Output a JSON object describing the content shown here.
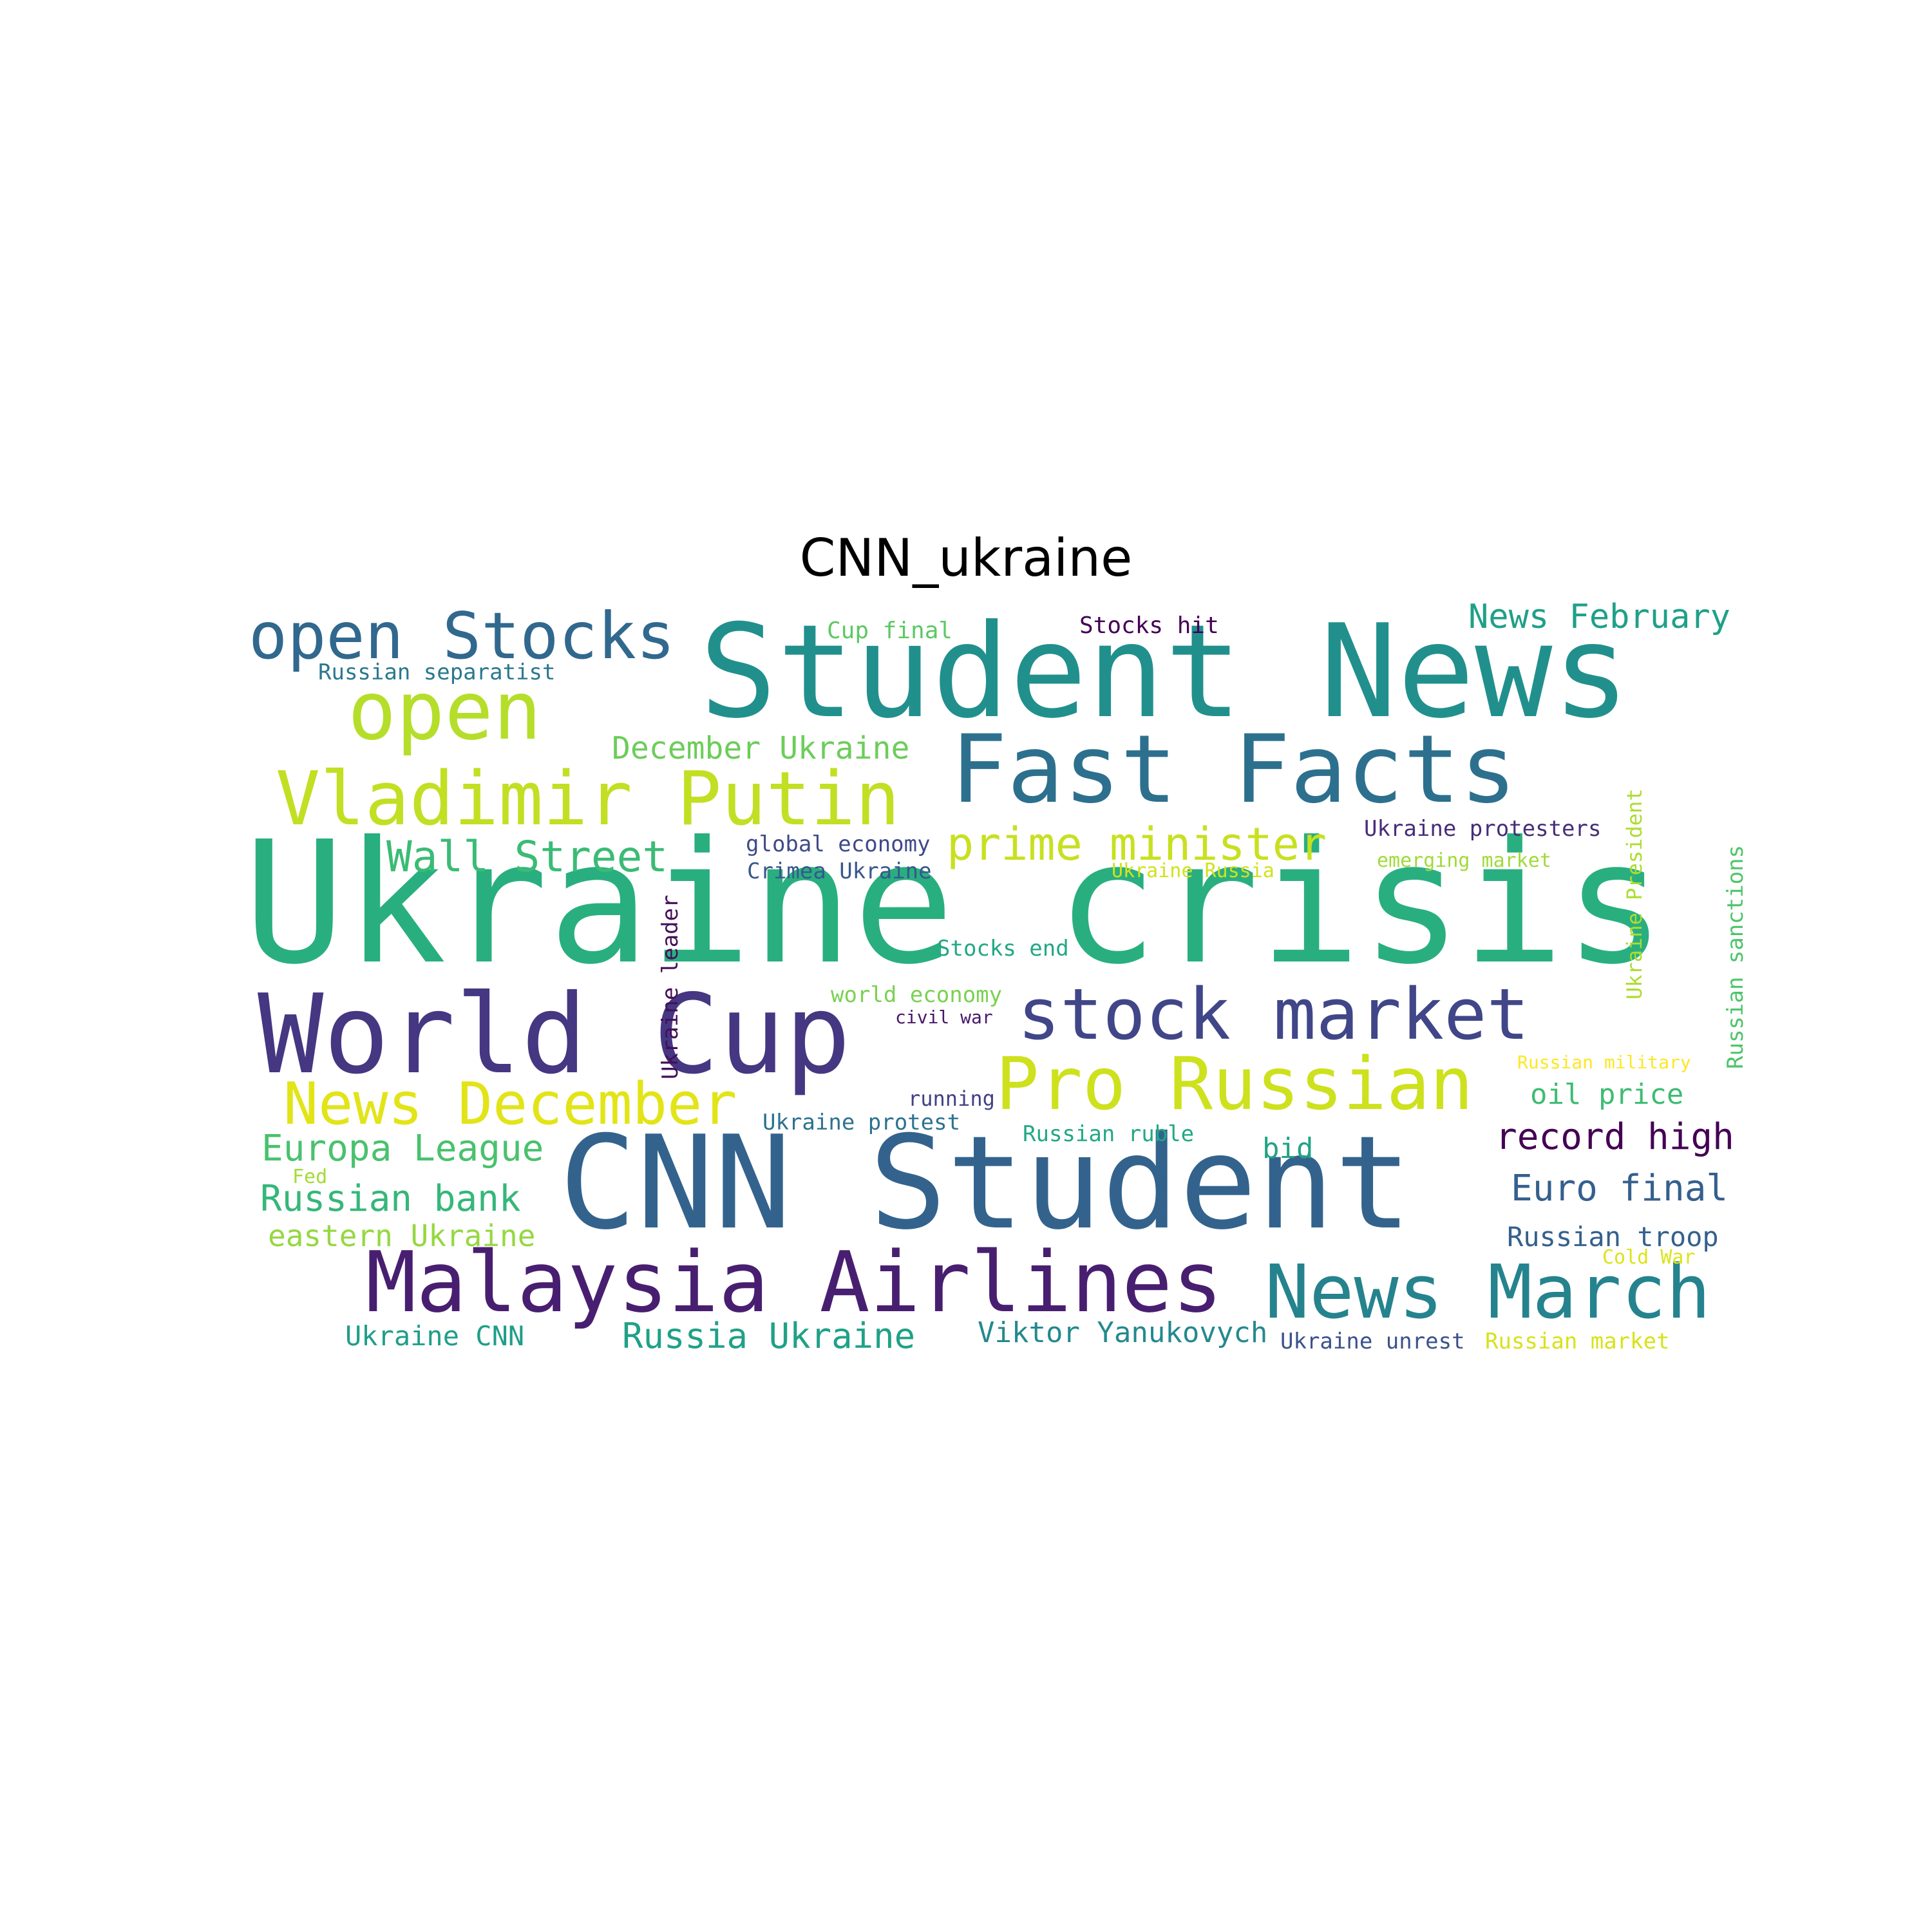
{
  "title": "CNN_ukraine",
  "words": [
    {
      "text": "Ukraine crisis",
      "color": "#29af7f",
      "orientation": "horizontal"
    },
    {
      "text": "Student News",
      "color": "#21908d",
      "orientation": "horizontal"
    },
    {
      "text": "CNN Student",
      "color": "#33638d",
      "orientation": "horizontal"
    },
    {
      "text": "Fast Facts",
      "color": "#2d708e",
      "orientation": "horizontal"
    },
    {
      "text": "World Cup",
      "color": "#453781",
      "orientation": "horizontal"
    },
    {
      "text": "stock market",
      "color": "#404688",
      "orientation": "horizontal"
    },
    {
      "text": "Malaysia Airlines",
      "color": "#481f70",
      "orientation": "horizontal"
    },
    {
      "text": "News March",
      "color": "#25838e",
      "orientation": "horizontal"
    },
    {
      "text": "open Stocks",
      "color": "#31688e",
      "orientation": "horizontal"
    },
    {
      "text": "open",
      "color": "#b5de2b",
      "orientation": "horizontal"
    },
    {
      "text": "Vladimir Putin",
      "color": "#c2df23",
      "orientation": "horizontal"
    },
    {
      "text": "Pro Russian",
      "color": "#cde11d",
      "orientation": "horizontal"
    },
    {
      "text": "News December",
      "color": "#e2e418",
      "orientation": "horizontal"
    },
    {
      "text": "Wall Street",
      "color": "#3bbb75",
      "orientation": "horizontal"
    },
    {
      "text": "prime minister",
      "color": "#c8e020",
      "orientation": "horizontal"
    },
    {
      "text": "News February",
      "color": "#1fa088",
      "orientation": "horizontal"
    },
    {
      "text": "December Ukraine",
      "color": "#6ccd5a",
      "orientation": "horizontal"
    },
    {
      "text": "Cup final",
      "color": "#5cc863",
      "orientation": "horizontal"
    },
    {
      "text": "Stocks hit",
      "color": "#440154",
      "orientation": "horizontal"
    },
    {
      "text": "Russian separatist",
      "color": "#2a788e",
      "orientation": "horizontal"
    },
    {
      "text": "global economy",
      "color": "#3e4a89",
      "orientation": "horizontal"
    },
    {
      "text": "Crimea Ukraine",
      "color": "#38588c",
      "orientation": "horizontal"
    },
    {
      "text": "Ukraine protesters",
      "color": "#472c7a",
      "orientation": "horizontal"
    },
    {
      "text": "emerging market",
      "color": "#a0da39",
      "orientation": "horizontal"
    },
    {
      "text": "Ukraine Russia",
      "color": "#d2e21b",
      "orientation": "horizontal"
    },
    {
      "text": "Stocks end",
      "color": "#22a785",
      "orientation": "horizontal"
    },
    {
      "text": "world economy",
      "color": "#7ad151",
      "orientation": "horizontal"
    },
    {
      "text": "civil war",
      "color": "#481769",
      "orientation": "horizontal"
    },
    {
      "text": "Russian military",
      "color": "#fde725",
      "orientation": "horizontal"
    },
    {
      "text": "oil price",
      "color": "#3fbc73",
      "orientation": "horizontal"
    },
    {
      "text": "running",
      "color": "#424086",
      "orientation": "horizontal"
    },
    {
      "text": "Ukraine protest",
      "color": "#2c728e",
      "orientation": "horizontal"
    },
    {
      "text": "Russian ruble",
      "color": "#22a884",
      "orientation": "horizontal"
    },
    {
      "text": "Europa League",
      "color": "#4ac16d",
      "orientation": "horizontal"
    },
    {
      "text": "bid",
      "color": "#20a486",
      "orientation": "horizontal"
    },
    {
      "text": "record high",
      "color": "#440154",
      "orientation": "horizontal"
    },
    {
      "text": "Fed",
      "color": "#a5db36",
      "orientation": "horizontal"
    },
    {
      "text": "Russian bank",
      "color": "#35b779",
      "orientation": "horizontal"
    },
    {
      "text": "Euro final",
      "color": "#355f8d",
      "orientation": "horizontal"
    },
    {
      "text": "eastern Ukraine",
      "color": "#95d840",
      "orientation": "horizontal"
    },
    {
      "text": "Russian troop",
      "color": "#34618d",
      "orientation": "horizontal"
    },
    {
      "text": "Cold War",
      "color": "#dde318",
      "orientation": "horizontal"
    },
    {
      "text": "Ukraine CNN",
      "color": "#1f9e89",
      "orientation": "horizontal"
    },
    {
      "text": "Russia Ukraine",
      "color": "#1fa187",
      "orientation": "horizontal"
    },
    {
      "text": "Viktor Yanukovych",
      "color": "#23898e",
      "orientation": "horizontal"
    },
    {
      "text": "Ukraine unrest",
      "color": "#3b528b",
      "orientation": "horizontal"
    },
    {
      "text": "Russian market",
      "color": "#d8e219",
      "orientation": "horizontal"
    },
    {
      "text": "Ukraine leader",
      "color": "#440f5a",
      "orientation": "vertical"
    },
    {
      "text": "Ukraine President",
      "color": "#addc30",
      "orientation": "vertical"
    },
    {
      "text": "Russian sanctions",
      "color": "#4fc46a",
      "orientation": "vertical"
    }
  ]
}
